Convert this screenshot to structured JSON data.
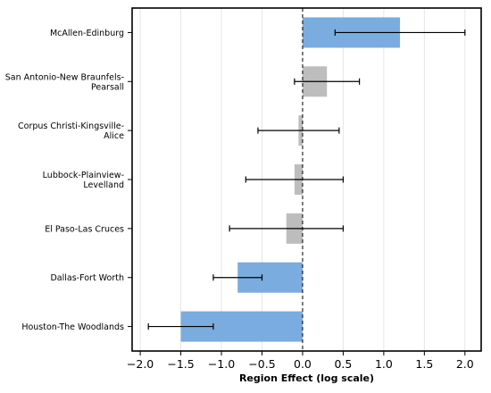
{
  "chart_data": {
    "type": "bar",
    "orientation": "horizontal",
    "xlabel": "Region Effect (log scale)",
    "ylabel": "",
    "xlim": [
      -2.1,
      2.2
    ],
    "xticks": [
      -2.0,
      -1.5,
      -1.0,
      -0.5,
      0.0,
      0.5,
      1.0,
      1.5,
      2.0
    ],
    "xtick_labels": [
      "−2.0",
      "−1.5",
      "−1.0",
      "−0.5",
      "0.0",
      "0.5",
      "1.0",
      "1.5",
      "2.0"
    ],
    "grid": "vertical",
    "reference_line": {
      "x": 0,
      "style": "dashed"
    },
    "colors": {
      "significant": "#7aacdf",
      "not_significant": "#bdbdbd",
      "axis": "#000000",
      "grid": "#e6e6e6"
    },
    "categories": [
      [
        "McAllen-Edinburg"
      ],
      [
        "San Antonio-New Braunfels-",
        "Pearsall"
      ],
      [
        "Corpus Christi-Kingsville-",
        "Alice"
      ],
      [
        "Lubbock-Plainview-",
        "Levelland"
      ],
      [
        "El Paso-Las Cruces"
      ],
      [
        "Dallas-Fort Worth"
      ],
      [
        "Houston-The Woodlands"
      ]
    ],
    "values": [
      1.2,
      0.3,
      -0.05,
      -0.1,
      -0.2,
      -0.8,
      -1.5
    ],
    "ci_low": [
      0.4,
      -0.1,
      -0.55,
      -0.7,
      -0.9,
      -1.1,
      -1.9
    ],
    "ci_high": [
      2.0,
      0.7,
      0.45,
      0.5,
      0.5,
      -0.5,
      -1.1
    ],
    "significant": [
      true,
      false,
      false,
      false,
      false,
      true,
      true
    ]
  }
}
